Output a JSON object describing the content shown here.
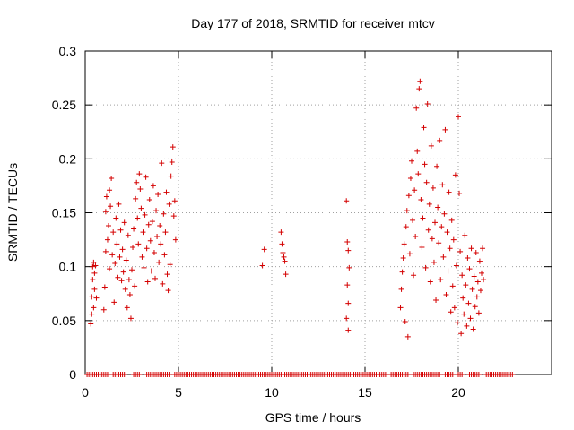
{
  "chart_data": {
    "type": "scatter",
    "title": "Day 177 of 2018, SRMTID for receiver mtcv",
    "xlabel": "GPS time / hours",
    "ylabel": "SRMTID / TECUs",
    "xlim": [
      0,
      25
    ],
    "ylim": [
      0,
      0.3
    ],
    "xticks": [
      0,
      5,
      10,
      15,
      20
    ],
    "xtick_labels": [
      "0",
      "5",
      "10",
      "15",
      "20"
    ],
    "yticks": [
      0,
      0.05,
      0.1,
      0.15,
      0.2,
      0.25,
      0.3
    ],
    "ytick_labels": [
      "0",
      "0.05",
      "0.1",
      "0.15",
      "0.2",
      "0.25",
      "0.3"
    ],
    "grid": true,
    "marker": "+",
    "marker_color": "#d40000",
    "series": [
      {
        "name": "SRMTID",
        "points": [
          [
            0.3,
            0.047
          ],
          [
            0.35,
            0.056
          ],
          [
            0.35,
            0.072
          ],
          [
            0.4,
            0.088
          ],
          [
            0.4,
            0.1
          ],
          [
            0.45,
            0.062
          ],
          [
            0.45,
            0.104
          ],
          [
            0.5,
            0.079
          ],
          [
            0.5,
            0.094
          ],
          [
            0.55,
            0.101
          ],
          [
            0.6,
            0.071
          ],
          [
            1.0,
            0.06
          ],
          [
            1.05,
            0.081
          ],
          [
            1.1,
            0.114
          ],
          [
            1.1,
            0.151
          ],
          [
            1.15,
            0.165
          ],
          [
            1.2,
            0.125
          ],
          [
            1.25,
            0.138
          ],
          [
            1.3,
            0.098
          ],
          [
            1.3,
            0.171
          ],
          [
            1.35,
            0.156
          ],
          [
            1.4,
            0.182
          ],
          [
            1.45,
            0.111
          ],
          [
            1.5,
            0.132
          ],
          [
            1.55,
            0.067
          ],
          [
            1.6,
            0.103
          ],
          [
            1.65,
            0.145
          ],
          [
            1.7,
            0.121
          ],
          [
            1.75,
            0.09
          ],
          [
            1.8,
            0.158
          ],
          [
            1.85,
            0.109
          ],
          [
            1.9,
            0.134
          ],
          [
            1.95,
            0.087
          ],
          [
            2.0,
            0.116
          ],
          [
            2.05,
            0.095
          ],
          [
            2.1,
            0.141
          ],
          [
            2.15,
            0.079
          ],
          [
            2.2,
            0.106
          ],
          [
            2.25,
            0.062
          ],
          [
            2.3,
            0.129
          ],
          [
            2.35,
            0.088
          ],
          [
            2.4,
            0.074
          ],
          [
            2.45,
            0.052
          ],
          [
            2.5,
            0.097
          ],
          [
            2.55,
            0.118
          ],
          [
            2.6,
            0.135
          ],
          [
            2.65,
            0.082
          ],
          [
            2.7,
            0.163
          ],
          [
            2.75,
            0.178
          ],
          [
            2.8,
            0.145
          ],
          [
            2.85,
            0.121
          ],
          [
            2.9,
            0.186
          ],
          [
            2.95,
            0.172
          ],
          [
            3.0,
            0.154
          ],
          [
            3.05,
            0.109
          ],
          [
            3.1,
            0.132
          ],
          [
            3.15,
            0.099
          ],
          [
            3.2,
            0.148
          ],
          [
            3.25,
            0.183
          ],
          [
            3.3,
            0.117
          ],
          [
            3.35,
            0.086
          ],
          [
            3.4,
            0.139
          ],
          [
            3.45,
            0.162
          ],
          [
            3.5,
            0.124
          ],
          [
            3.55,
            0.096
          ],
          [
            3.6,
            0.142
          ],
          [
            3.65,
            0.175
          ],
          [
            3.7,
            0.113
          ],
          [
            3.75,
            0.089
          ],
          [
            3.8,
            0.152
          ],
          [
            3.85,
            0.128
          ],
          [
            3.9,
            0.167
          ],
          [
            3.95,
            0.104
          ],
          [
            4.0,
            0.138
          ],
          [
            4.05,
            0.121
          ],
          [
            4.1,
            0.196
          ],
          [
            4.15,
            0.084
          ],
          [
            4.2,
            0.149
          ],
          [
            4.25,
            0.111
          ],
          [
            4.3,
            0.132
          ],
          [
            4.35,
            0.169
          ],
          [
            4.4,
            0.093
          ],
          [
            4.45,
            0.078
          ],
          [
            4.5,
            0.158
          ],
          [
            4.55,
            0.102
          ],
          [
            4.6,
            0.184
          ],
          [
            4.65,
            0.197
          ],
          [
            4.7,
            0.211
          ],
          [
            4.75,
            0.147
          ],
          [
            4.8,
            0.161
          ],
          [
            4.85,
            0.125
          ],
          [
            9.5,
            0.101
          ],
          [
            9.6,
            0.116
          ],
          [
            10.5,
            0.132
          ],
          [
            10.55,
            0.121
          ],
          [
            10.6,
            0.113
          ],
          [
            10.65,
            0.109
          ],
          [
            10.7,
            0.105
          ],
          [
            10.75,
            0.093
          ],
          [
            14.0,
            0.161
          ],
          [
            14.05,
            0.123
          ],
          [
            14.1,
            0.115
          ],
          [
            14.15,
            0.099
          ],
          [
            14.05,
            0.083
          ],
          [
            14.1,
            0.066
          ],
          [
            14.0,
            0.052
          ],
          [
            14.1,
            0.041
          ],
          [
            16.9,
            0.062
          ],
          [
            16.95,
            0.079
          ],
          [
            17.0,
            0.095
          ],
          [
            17.05,
            0.108
          ],
          [
            17.1,
            0.121
          ],
          [
            17.15,
            0.049
          ],
          [
            17.2,
            0.137
          ],
          [
            17.25,
            0.152
          ],
          [
            17.3,
            0.035
          ],
          [
            17.35,
            0.166
          ],
          [
            17.4,
            0.112
          ],
          [
            17.45,
            0.182
          ],
          [
            17.5,
            0.198
          ],
          [
            17.55,
            0.143
          ],
          [
            17.6,
            0.092
          ],
          [
            17.65,
            0.171
          ],
          [
            17.7,
            0.128
          ],
          [
            17.75,
            0.247
          ],
          [
            17.8,
            0.207
          ],
          [
            17.85,
            0.186
          ],
          [
            17.9,
            0.265
          ],
          [
            17.95,
            0.272
          ],
          [
            18.0,
            0.162
          ],
          [
            18.05,
            0.118
          ],
          [
            18.1,
            0.145
          ],
          [
            18.15,
            0.229
          ],
          [
            18.2,
            0.195
          ],
          [
            18.25,
            0.099
          ],
          [
            18.3,
            0.178
          ],
          [
            18.35,
            0.251
          ],
          [
            18.4,
            0.134
          ],
          [
            18.45,
            0.158
          ],
          [
            18.5,
            0.086
          ],
          [
            18.55,
            0.212
          ],
          [
            18.6,
            0.126
          ],
          [
            18.65,
            0.173
          ],
          [
            18.7,
            0.104
          ],
          [
            18.75,
            0.141
          ],
          [
            18.8,
            0.069
          ],
          [
            18.85,
            0.193
          ],
          [
            18.9,
            0.155
          ],
          [
            18.95,
            0.122
          ],
          [
            19.0,
            0.217
          ],
          [
            19.05,
            0.088
          ],
          [
            19.1,
            0.137
          ],
          [
            19.15,
            0.176
          ],
          [
            19.2,
            0.109
          ],
          [
            19.25,
            0.149
          ],
          [
            19.3,
            0.227
          ],
          [
            19.35,
            0.074
          ],
          [
            19.4,
            0.132
          ],
          [
            19.45,
            0.096
          ],
          [
            19.5,
            0.169
          ],
          [
            19.55,
            0.117
          ],
          [
            19.6,
            0.058
          ],
          [
            19.65,
            0.143
          ],
          [
            19.7,
            0.082
          ],
          [
            19.75,
            0.125
          ],
          [
            19.8,
            0.062
          ],
          [
            19.85,
            0.185
          ],
          [
            19.9,
            0.101
          ],
          [
            19.95,
            0.048
          ],
          [
            20.0,
            0.239
          ],
          [
            20.05,
            0.168
          ],
          [
            20.1,
            0.114
          ],
          [
            20.15,
            0.038
          ],
          [
            20.2,
            0.092
          ],
          [
            20.25,
            0.071
          ],
          [
            20.3,
            0.056
          ],
          [
            20.35,
            0.129
          ],
          [
            20.4,
            0.083
          ],
          [
            20.45,
            0.045
          ],
          [
            20.5,
            0.108
          ],
          [
            20.55,
            0.066
          ],
          [
            20.6,
            0.098
          ],
          [
            20.65,
            0.052
          ],
          [
            20.7,
            0.117
          ],
          [
            20.75,
            0.079
          ],
          [
            20.8,
            0.042
          ],
          [
            20.85,
            0.091
          ],
          [
            20.9,
            0.063
          ],
          [
            20.95,
            0.113
          ],
          [
            21.0,
            0.072
          ],
          [
            21.05,
            0.086
          ],
          [
            21.1,
            0.057
          ],
          [
            21.15,
            0.105
          ],
          [
            21.2,
            0.078
          ],
          [
            21.25,
            0.094
          ],
          [
            21.3,
            0.117
          ],
          [
            21.35,
            0.088
          ]
        ]
      }
    ],
    "baseline_segments": [
      [
        0.1,
        1.2
      ],
      [
        1.5,
        2.1
      ],
      [
        2.6,
        2.9
      ],
      [
        3.3,
        4.5
      ],
      [
        4.8,
        16.1
      ],
      [
        16.4,
        17.3
      ],
      [
        17.6,
        19.0
      ],
      [
        19.3,
        19.7
      ],
      [
        20.0,
        20.2
      ],
      [
        20.6,
        21.1
      ],
      [
        21.5,
        22.9
      ]
    ]
  }
}
